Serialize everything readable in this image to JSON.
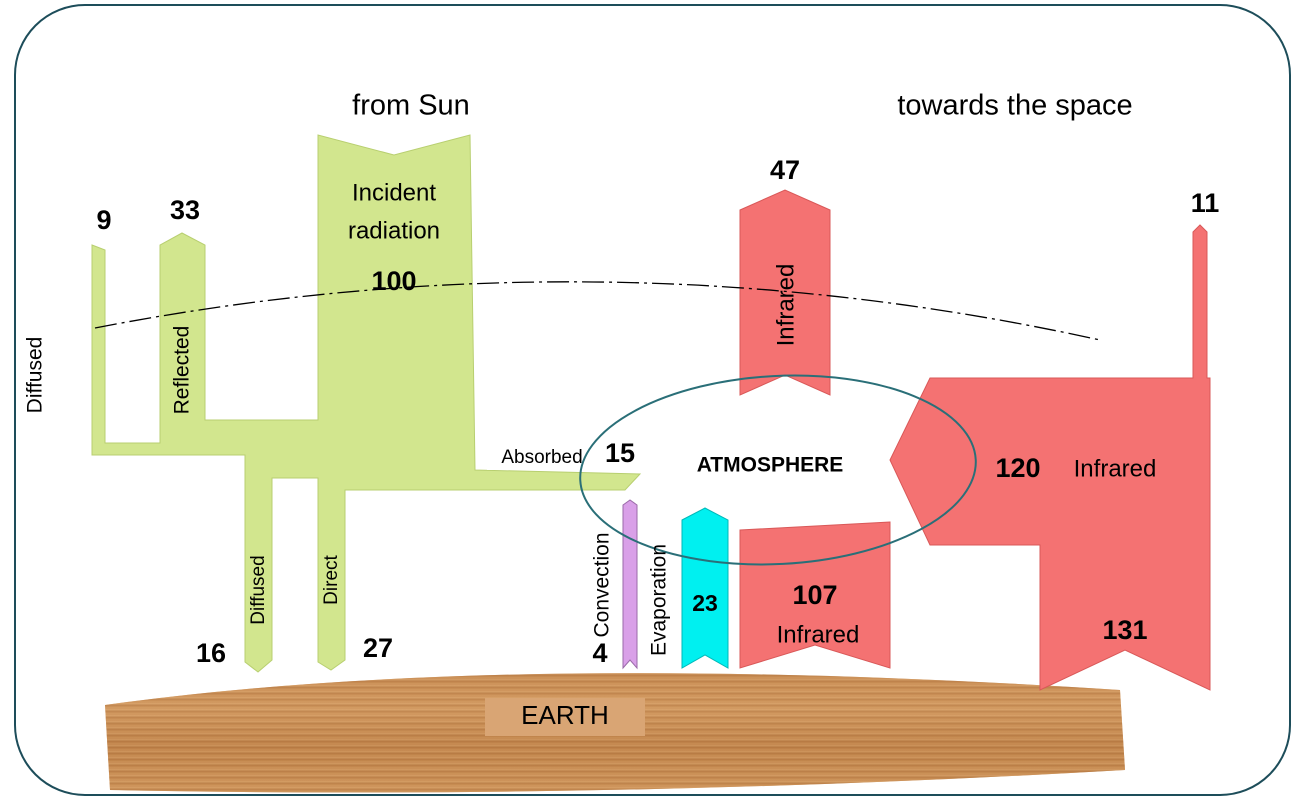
{
  "header": {
    "from_sun": "from Sun",
    "to_space": "towards the space"
  },
  "solar": {
    "incident": {
      "lines": [
        "Incident",
        "radiation"
      ],
      "value": 100
    },
    "diffused_space": {
      "label": "Diffused",
      "value": 9
    },
    "reflected": {
      "label": "Reflected",
      "value": 33
    },
    "absorbed": {
      "label": "Absorbed",
      "value": 15
    },
    "diffused_earth": {
      "label": "Diffused",
      "value": 16
    },
    "direct": {
      "label": "Direct",
      "value": 27
    }
  },
  "atmosphere": {
    "label": "ATMOSPHERE"
  },
  "infrared": {
    "atmosphere_to_space": {
      "label": "Infrared",
      "value": 47
    },
    "earth_to_space": {
      "value": 11
    },
    "earth_up": {
      "label": "Infrared",
      "value": 120
    },
    "earth_total": {
      "value": 131
    },
    "back_radiation": {
      "label": "Infrared",
      "value": 107
    }
  },
  "fluxes": {
    "convection": {
      "label": "Convection",
      "value": 4
    },
    "evaporation": {
      "label": "Evaporation",
      "value": 23
    }
  },
  "earth": {
    "label": "EARTH"
  }
}
